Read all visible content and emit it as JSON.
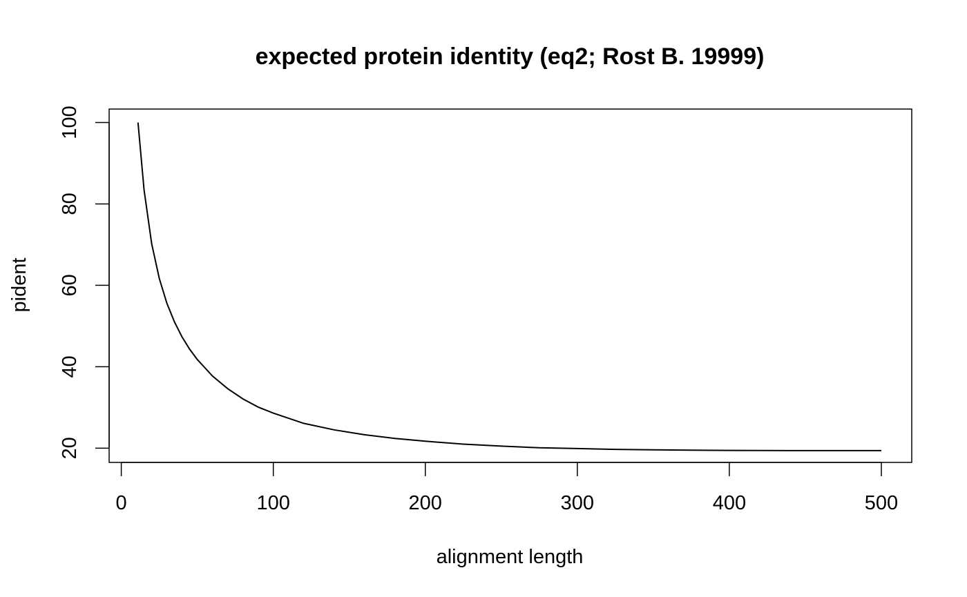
{
  "chart_data": {
    "type": "line",
    "title": "expected protein identity (eq2; Rost B. 19999)",
    "xlabel": "alignment length",
    "ylabel": "pident",
    "xlim": [
      -8,
      520
    ],
    "ylim": [
      16.5,
      103.3
    ],
    "x_ticks": [
      0,
      100,
      200,
      300,
      400,
      500
    ],
    "x_tick_labels": [
      "0",
      "100",
      "200",
      "300",
      "400",
      "500"
    ],
    "y_ticks": [
      20,
      40,
      60,
      80,
      100
    ],
    "y_tick_labels": [
      "20",
      "40",
      "60",
      "80",
      "100"
    ],
    "grid": false,
    "legend": "none",
    "line_color": "#000000",
    "series": [
      {
        "x": [
          11,
          15,
          20,
          25,
          30,
          35,
          40,
          45,
          50,
          60,
          70,
          80,
          90,
          100,
          120,
          140,
          160,
          180,
          200,
          225,
          250,
          275,
          300,
          325,
          350,
          375,
          400,
          425,
          450,
          475,
          500
        ],
        "y": [
          100,
          83.4,
          70.2,
          61.7,
          55.6,
          51.0,
          47.3,
          44.3,
          41.8,
          37.7,
          34.6,
          32.1,
          30.1,
          28.6,
          26.1,
          24.5,
          23.3,
          22.4,
          21.7,
          21.0,
          20.5,
          20.1,
          19.9,
          19.7,
          19.6,
          19.5,
          19.45,
          19.42,
          19.4,
          19.4,
          19.4
        ]
      }
    ]
  }
}
